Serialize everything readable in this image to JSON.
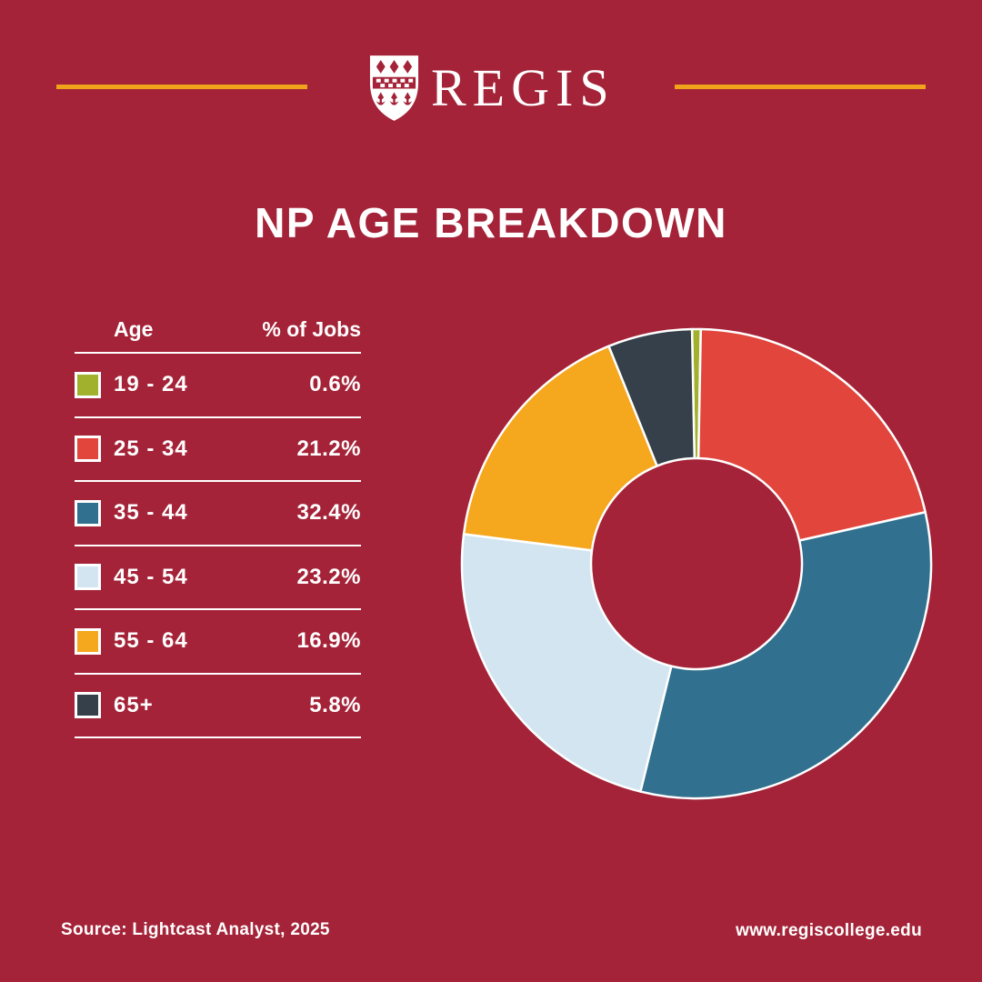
{
  "colors": {
    "bg": "#A42338",
    "gold": "#F0A41C",
    "white": "#FFFFFF",
    "green": "#A2B12D",
    "red": "#E2453C",
    "blue": "#31708F",
    "lightblue": "#D2E5F1",
    "orange": "#F5A71D",
    "dark": "#36404A"
  },
  "header": {
    "brand": "REGIS",
    "logo_icon": "regis-crest-shield"
  },
  "title": "NP AGE BREAKDOWN",
  "table": {
    "col_age": "Age",
    "col_jobs": "% of Jobs",
    "rows": [
      {
        "label": "19 - 24",
        "value": "0.6%",
        "color": "#A2B12D"
      },
      {
        "label": "25 - 34",
        "value": "21.2%",
        "color": "#E2453C"
      },
      {
        "label": "35 - 44",
        "value": "32.4%",
        "color": "#31708F"
      },
      {
        "label": "45 - 54",
        "value": "23.2%",
        "color": "#D2E5F1"
      },
      {
        "label": "55 - 64",
        "value": "16.9%",
        "color": "#F5A71D"
      },
      {
        "label": "65+",
        "value": "5.8%",
        "color": "#36404A"
      }
    ]
  },
  "chart_data": {
    "type": "pie",
    "subtype": "donut",
    "title": "NP AGE BREAKDOWN",
    "categories": [
      "19 - 24",
      "25 - 34",
      "35 - 44",
      "45 - 54",
      "55 - 64",
      "65+"
    ],
    "values": [
      0.6,
      21.2,
      32.4,
      23.2,
      16.9,
      5.8
    ],
    "unit": "%",
    "colors": [
      "#A2B12D",
      "#E2453C",
      "#31708F",
      "#D2E5F1",
      "#F5A71D",
      "#36404A"
    ],
    "start_angle_deg": -91.1,
    "direction": "clockwise",
    "inner_radius_ratio": 0.45,
    "stroke_color": "#FFFFFF",
    "legend_position": "left-table"
  },
  "footer": {
    "source": "Source: Lightcast Analyst, 2025",
    "website": "www.regiscollege.edu"
  }
}
